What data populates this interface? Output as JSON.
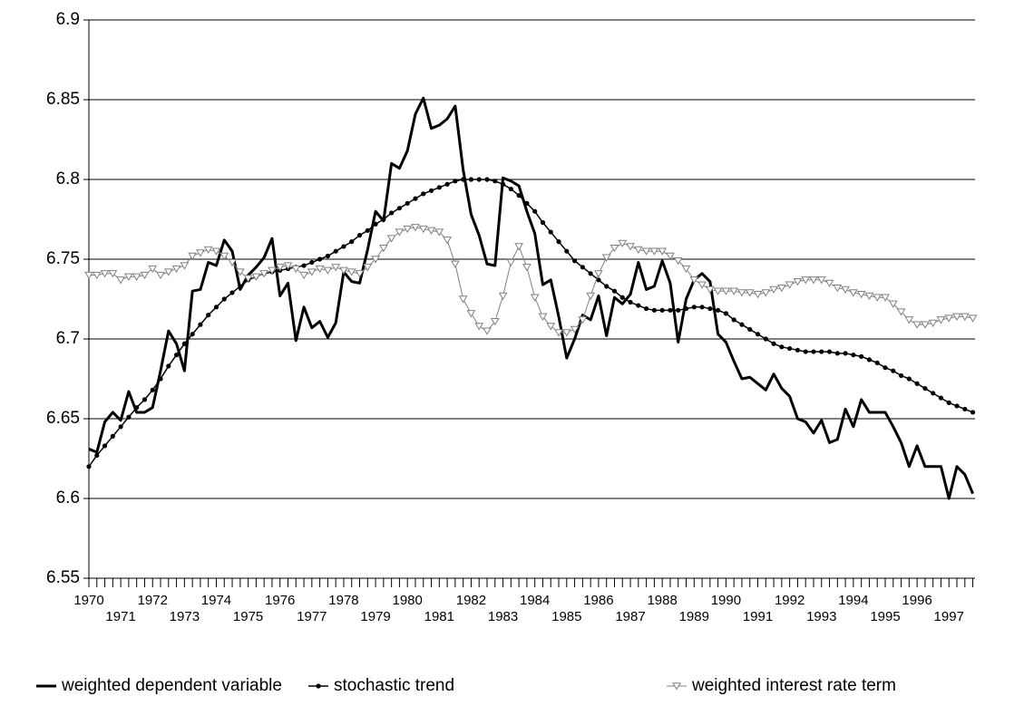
{
  "chart_data": {
    "type": "line",
    "categories": [
      "1970",
      null,
      null,
      null,
      "1971",
      null,
      null,
      null,
      "1972",
      null,
      null,
      null,
      "1973",
      null,
      null,
      null,
      "1974",
      null,
      null,
      null,
      "1975",
      null,
      null,
      null,
      "1976",
      null,
      null,
      null,
      "1977",
      null,
      null,
      null,
      "1978",
      null,
      null,
      null,
      "1979",
      null,
      null,
      null,
      "1980",
      null,
      null,
      null,
      "1981",
      null,
      null,
      null,
      "1982",
      null,
      null,
      null,
      "1983",
      null,
      null,
      null,
      "1984",
      null,
      null,
      null,
      "1985",
      null,
      null,
      null,
      "1986",
      null,
      null,
      null,
      "1987",
      null,
      null,
      null,
      "1988",
      null,
      null,
      null,
      "1989",
      null,
      null,
      null,
      "1990",
      null,
      null,
      null,
      "1991",
      null,
      null,
      null,
      "1992",
      null,
      null,
      null,
      "1993",
      null,
      null,
      null,
      "1994",
      null,
      null,
      null,
      "1995",
      null,
      null,
      null,
      "1996",
      null,
      null,
      null,
      "1997",
      null,
      null,
      null
    ],
    "series": [
      {
        "name": "weighted dependent variable",
        "color": "#000000",
        "marker": "none",
        "values": [
          6.631,
          6.629,
          6.648,
          6.654,
          6.649,
          6.667,
          6.654,
          6.654,
          6.657,
          6.68,
          6.705,
          6.697,
          6.68,
          6.73,
          6.731,
          6.748,
          6.746,
          6.762,
          6.755,
          6.731,
          6.74,
          6.745,
          6.751,
          6.763,
          6.727,
          6.735,
          6.699,
          6.72,
          6.707,
          6.711,
          6.701,
          6.71,
          6.742,
          6.736,
          6.735,
          6.756,
          6.78,
          6.774,
          6.81,
          6.807,
          6.818,
          6.841,
          6.851,
          6.832,
          6.834,
          6.838,
          6.846,
          6.806,
          6.778,
          6.765,
          6.747,
          6.746,
          6.801,
          6.799,
          6.796,
          6.78,
          6.766,
          6.734,
          6.737,
          6.714,
          6.688,
          6.7,
          6.715,
          6.712,
          6.727,
          6.702,
          6.726,
          6.722,
          6.728,
          6.748,
          6.731,
          6.733,
          6.749,
          6.735,
          6.698,
          6.725,
          6.737,
          6.741,
          6.736,
          6.703,
          6.698,
          6.686,
          6.675,
          6.676,
          6.672,
          6.668,
          6.678,
          6.669,
          6.664,
          6.65,
          6.648,
          6.641,
          6.649,
          6.635,
          6.637,
          6.656,
          6.645,
          6.662,
          6.654,
          6.654,
          6.654,
          6.645,
          6.635,
          6.62,
          6.633,
          6.62,
          6.62,
          6.62,
          6.6,
          6.62,
          6.615,
          6.603
        ]
      },
      {
        "name": "stochastic trend",
        "color": "#000000",
        "marker": "circle",
        "values": [
          6.62,
          6.627,
          6.633,
          6.639,
          6.645,
          6.651,
          6.657,
          6.662,
          6.668,
          6.675,
          6.683,
          6.69,
          6.697,
          6.703,
          6.709,
          6.715,
          6.72,
          6.725,
          6.729,
          6.733,
          6.737,
          6.739,
          6.741,
          6.742,
          6.743,
          6.744,
          6.745,
          6.746,
          6.748,
          6.75,
          6.752,
          6.755,
          6.758,
          6.761,
          6.765,
          6.768,
          6.772,
          6.775,
          6.779,
          6.782,
          6.785,
          6.788,
          6.791,
          6.793,
          6.795,
          6.797,
          6.799,
          6.8,
          6.8,
          6.8,
          6.8,
          6.799,
          6.797,
          6.794,
          6.79,
          6.785,
          6.78,
          6.773,
          6.767,
          6.761,
          6.755,
          6.749,
          6.745,
          6.741,
          6.737,
          6.733,
          6.73,
          6.726,
          6.723,
          6.721,
          6.719,
          6.718,
          6.718,
          6.718,
          6.718,
          6.719,
          6.72,
          6.72,
          6.719,
          6.718,
          6.716,
          6.712,
          6.709,
          6.706,
          6.703,
          6.7,
          6.697,
          6.695,
          6.694,
          6.693,
          6.692,
          6.692,
          6.692,
          6.692,
          6.691,
          6.691,
          6.69,
          6.689,
          6.687,
          6.685,
          6.682,
          6.68,
          6.677,
          6.675,
          6.672,
          6.669,
          6.666,
          6.663,
          6.66,
          6.658,
          6.656,
          6.654
        ]
      },
      {
        "name": "weighted interest rate term",
        "color": "#808080",
        "marker": "triangle",
        "values": [
          6.74,
          6.74,
          6.741,
          6.741,
          6.737,
          6.739,
          6.739,
          6.74,
          6.744,
          6.74,
          6.742,
          6.744,
          6.746,
          6.752,
          6.754,
          6.756,
          6.755,
          6.752,
          6.748,
          6.742,
          6.738,
          6.739,
          6.741,
          6.743,
          6.745,
          6.746,
          6.744,
          6.74,
          6.742,
          6.744,
          6.743,
          6.745,
          6.743,
          6.742,
          6.741,
          6.745,
          6.75,
          6.757,
          6.763,
          6.767,
          6.769,
          6.77,
          6.769,
          6.768,
          6.767,
          6.762,
          6.747,
          6.725,
          6.716,
          6.708,
          6.705,
          6.711,
          6.727,
          6.748,
          6.758,
          6.745,
          6.726,
          6.714,
          6.708,
          6.704,
          6.704,
          6.706,
          6.712,
          6.727,
          6.741,
          6.751,
          6.757,
          6.76,
          6.758,
          6.756,
          6.755,
          6.755,
          6.755,
          6.752,
          6.749,
          6.744,
          6.737,
          6.734,
          6.731,
          6.73,
          6.73,
          6.73,
          6.729,
          6.729,
          6.728,
          6.729,
          6.731,
          6.732,
          6.734,
          6.736,
          6.737,
          6.737,
          6.737,
          6.735,
          6.732,
          6.731,
          6.729,
          6.728,
          6.727,
          6.726,
          6.726,
          6.722,
          6.717,
          6.712,
          6.709,
          6.709,
          6.71,
          6.712,
          6.713,
          6.714,
          6.714,
          6.713
        ]
      }
    ],
    "ylim": [
      6.55,
      6.9
    ],
    "yticks": [
      6.55,
      6.6,
      6.65,
      6.7,
      6.75,
      6.8,
      6.85,
      6.9
    ],
    "grid": true,
    "legend": "bottom"
  }
}
